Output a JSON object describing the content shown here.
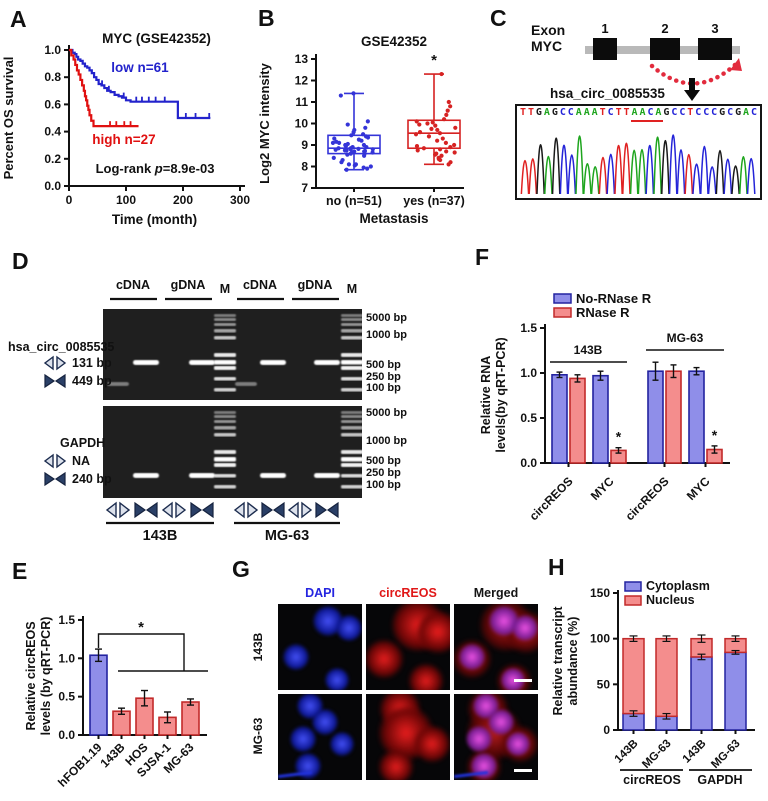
{
  "panel_letters": {
    "A": "A",
    "B": "B",
    "C": "C",
    "D": "D",
    "E": "E",
    "F": "F",
    "G": "G",
    "H": "H"
  },
  "colors": {
    "bar_blue_fill": "#8f8ee9",
    "bar_blue_stroke": "#2323a0",
    "bar_red_fill": "#f48d8d",
    "bar_red_stroke": "#c22a2a",
    "km_blue": "#2323cc",
    "km_red": "#e01010",
    "box_blue": "#3434d8",
    "box_red": "#d62222"
  },
  "chart_data": [
    {
      "id": "A",
      "type": "line",
      "title": "MYC  (GSE42352)",
      "xlabel": "Time (month)",
      "ylabel": "Percent OS survival",
      "xlim": [
        0,
        300
      ],
      "ylim": [
        0,
        1
      ],
      "xticks": [
        0,
        100,
        200,
        300
      ],
      "yticks": [
        0,
        0.2,
        0.4,
        0.6,
        0.8,
        1
      ],
      "annotation_parts": [
        "Log-rank ",
        "p",
        "=8.9e-03"
      ],
      "series": [
        {
          "name": "low",
          "label": "low  n=61",
          "color_key": "km_blue",
          "steps": [
            [
              0,
              1
            ],
            [
              6,
              0.98
            ],
            [
              10,
              0.97
            ],
            [
              13,
              0.95
            ],
            [
              16,
              0.93
            ],
            [
              20,
              0.92
            ],
            [
              24,
              0.9
            ],
            [
              28,
              0.88
            ],
            [
              32,
              0.87
            ],
            [
              36,
              0.85
            ],
            [
              40,
              0.83
            ],
            [
              44,
              0.8
            ],
            [
              48,
              0.78
            ],
            [
              52,
              0.75
            ],
            [
              57,
              0.74
            ],
            [
              62,
              0.72
            ],
            [
              67,
              0.7
            ],
            [
              73,
              0.69
            ],
            [
              80,
              0.67
            ],
            [
              87,
              0.66
            ],
            [
              93,
              0.65
            ],
            [
              100,
              0.63
            ],
            [
              108,
              0.62
            ],
            [
              186,
              0.62
            ],
            [
              191,
              0.5
            ],
            [
              248,
              0.5
            ]
          ],
          "censors": [
            [
              58,
              0.74
            ],
            [
              70,
              0.7
            ],
            [
              96,
              0.65
            ],
            [
              118,
              0.62
            ],
            [
              128,
              0.62
            ],
            [
              140,
              0.62
            ],
            [
              152,
              0.62
            ],
            [
              168,
              0.62
            ],
            [
              205,
              0.5
            ],
            [
              222,
              0.5
            ],
            [
              246,
              0.5
            ]
          ]
        },
        {
          "name": "high",
          "label": "high  n=27",
          "color_key": "km_red",
          "steps": [
            [
              0,
              1
            ],
            [
              4,
              0.96
            ],
            [
              8,
              0.93
            ],
            [
              11,
              0.89
            ],
            [
              14,
              0.85
            ],
            [
              17,
              0.82
            ],
            [
              20,
              0.78
            ],
            [
              23,
              0.74
            ],
            [
              26,
              0.7
            ],
            [
              28,
              0.66
            ],
            [
              30,
              0.63
            ],
            [
              32,
              0.59
            ],
            [
              34,
              0.56
            ],
            [
              36,
              0.52
            ],
            [
              39,
              0.48
            ],
            [
              43,
              0.44
            ],
            [
              122,
              0.44
            ]
          ],
          "censors": [
            [
              72,
              0.44
            ],
            [
              83,
              0.44
            ],
            [
              97,
              0.44
            ],
            [
              108,
              0.44
            ]
          ]
        }
      ]
    },
    {
      "id": "B",
      "type": "box-scatter",
      "title": "GSE42352",
      "ylabel": "Log2 MYC intensity",
      "xlabel": "Metastasis",
      "ylim": [
        7,
        13
      ],
      "yticks": [
        7,
        8,
        9,
        10,
        11,
        12,
        13
      ],
      "groups": [
        {
          "label": "no (n=51)",
          "color_key": "box_blue",
          "box": {
            "min": 7.85,
            "q1": 8.6,
            "med": 8.85,
            "q3": 9.45,
            "max": 11.4
          },
          "points": [
            7.85,
            7.9,
            7.95,
            8.0,
            8.05,
            8.1,
            8.1,
            8.2,
            8.3,
            8.4,
            8.5,
            8.55,
            8.6,
            8.6,
            8.65,
            8.65,
            8.7,
            8.7,
            8.7,
            8.72,
            8.75,
            8.75,
            8.78,
            8.8,
            8.8,
            8.82,
            8.85,
            8.85,
            8.9,
            8.9,
            8.95,
            9.0,
            9.0,
            9.05,
            9.1,
            9.1,
            9.15,
            9.2,
            9.25,
            9.3,
            9.35,
            9.4,
            9.45,
            9.5,
            9.6,
            9.7,
            9.8,
            9.95,
            10.1,
            11.3,
            11.4
          ]
        },
        {
          "label": "yes (n=37)",
          "color_key": "box_red",
          "sig": "*",
          "box": {
            "min": 8.1,
            "q1": 8.85,
            "med": 9.55,
            "q3": 10.15,
            "max": 12.3
          },
          "points": [
            8.1,
            8.2,
            8.3,
            8.35,
            8.4,
            8.5,
            8.55,
            8.6,
            8.65,
            8.7,
            8.75,
            8.8,
            8.85,
            8.9,
            8.95,
            9.0,
            9.1,
            9.2,
            9.3,
            9.4,
            9.5,
            9.55,
            9.6,
            9.7,
            9.75,
            9.8,
            9.9,
            9.95,
            10.0,
            10.05,
            10.1,
            10.2,
            10.4,
            10.6,
            10.8,
            11.0,
            12.3
          ]
        }
      ]
    },
    {
      "id": "E",
      "type": "bar",
      "ylabel_lines": [
        "Relative circREOS",
        "levels (by qRT-PCR)"
      ],
      "ylim": [
        0,
        1.5
      ],
      "yticks": [
        0,
        0.5,
        1,
        1.5
      ],
      "categories": [
        "hFOB1.19",
        "143B",
        "HOS",
        "SJSA-1",
        "MG-63"
      ],
      "values": [
        1.04,
        0.31,
        0.48,
        0.23,
        0.43
      ],
      "errors": [
        0.08,
        0.04,
        0.1,
        0.07,
        0.04
      ],
      "bar_color_keys": [
        "blue",
        "red",
        "red",
        "red",
        "red"
      ],
      "sig": "*"
    },
    {
      "id": "F",
      "type": "bar-grouped",
      "ylabel_lines": [
        "Relative RNA",
        "levels(by qRT-PCR)"
      ],
      "ylim": [
        0,
        1.5
      ],
      "yticks": [
        0,
        0.5,
        1,
        1.5
      ],
      "legend": [
        {
          "label": "No-RNase R",
          "color_key": "blue"
        },
        {
          "label": "RNase R",
          "color_key": "red"
        }
      ],
      "group_labels": [
        "143B",
        "MG-63"
      ],
      "categories": [
        "circREOS",
        "MYC",
        "circREOS",
        "MYC"
      ],
      "series": [
        {
          "name": "No-RNase R",
          "color_key": "blue",
          "values": [
            0.98,
            0.97,
            1.02,
            1.02
          ],
          "errors": [
            0.03,
            0.05,
            0.1,
            0.04
          ],
          "stars": [
            false,
            false,
            false,
            false
          ]
        },
        {
          "name": "RNase R",
          "color_key": "red",
          "values": [
            0.94,
            0.14,
            1.02,
            0.15
          ],
          "errors": [
            0.04,
            0.03,
            0.07,
            0.04
          ],
          "stars": [
            false,
            true,
            false,
            true
          ]
        }
      ]
    },
    {
      "id": "H",
      "type": "bar-stacked",
      "ylabel_lines": [
        "Relative transcript",
        "abundance (%)"
      ],
      "ylim": [
        0,
        150
      ],
      "yticks": [
        0,
        50,
        100,
        150
      ],
      "legend": [
        {
          "label": "Cytoplasm",
          "color_key": "blue"
        },
        {
          "label": "Nucleus",
          "color_key": "red"
        }
      ],
      "categories": [
        "143B",
        "MG-63",
        "143B",
        "MG-63"
      ],
      "group_labels": [
        "circREOS",
        "GAPDH"
      ],
      "series": [
        {
          "name": "Cytoplasm",
          "color_key": "blue",
          "values": [
            18,
            15,
            80,
            85
          ]
        },
        {
          "name": "Nucleus",
          "color_key": "red",
          "values": [
            82,
            85,
            20,
            15
          ]
        }
      ],
      "errors_mid": [
        3,
        3,
        3,
        2
      ],
      "errors_top": [
        3,
        3,
        4,
        3
      ]
    }
  ],
  "panel_c": {
    "exon_word": "Exon",
    "gene_word": "MYC",
    "exon_numbers": [
      "1",
      "2",
      "3"
    ],
    "circ_label": "hsa_circ_0085535",
    "sequence": "TTGAGCCAAATCTTAACAGCCTCCCGCGAC",
    "underline_start": 14,
    "underline_end": 18,
    "base_colors": {
      "A": "#1ea51e",
      "T": "#e02222",
      "G": "#1a1a1a",
      "C": "#2424d8"
    }
  },
  "panel_d": {
    "headers": [
      "cDNA",
      "gDNA",
      "M",
      "cDNA",
      "gDNA",
      "M"
    ],
    "gel1": {
      "name": "hsa_circ_0085535",
      "rows": [
        {
          "icon": "divergent-primer",
          "label": "131 bp"
        },
        {
          "icon": "convergent-primer",
          "label": "449 bp"
        }
      ],
      "markers": [
        "5000 bp",
        "1000 bp",
        "500 bp",
        "250 bp",
        "100 bp"
      ]
    },
    "gel2": {
      "name": "GAPDH",
      "rows": [
        {
          "icon": "divergent-primer",
          "label": "NA"
        },
        {
          "icon": "convergent-primer",
          "label": "240 bp"
        }
      ],
      "markers": [
        "5000 bp",
        "1000 bp",
        "500 bp",
        "250 bp",
        "100 bp"
      ]
    },
    "cell_lines": [
      "143B",
      "MG-63"
    ]
  },
  "panel_g": {
    "col_headers": [
      {
        "label": "DAPI",
        "color": "#2525e0"
      },
      {
        "label": "circREOS",
        "color": "#e01818"
      },
      {
        "label": "Merged",
        "color": "#141414"
      }
    ],
    "row_labels": [
      "143B",
      "MG-63"
    ]
  }
}
